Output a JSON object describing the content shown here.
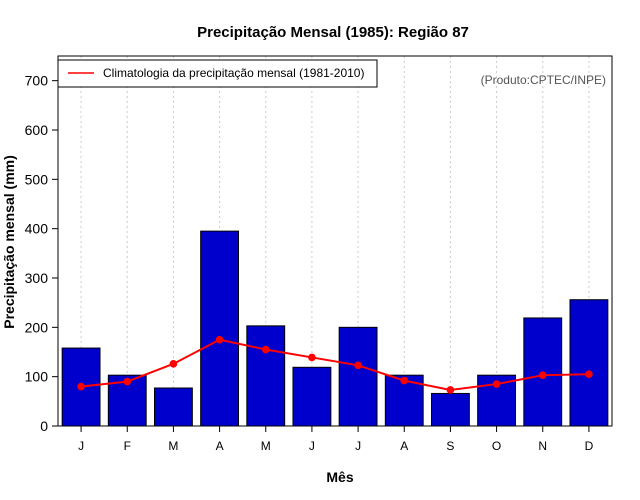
{
  "chart_data": {
    "type": "bar",
    "title": "Precipitação Mensal (1985): Região 87",
    "xlabel": "Mês",
    "ylabel": "Precipitação mensal (mm)",
    "ylim": [
      0,
      750
    ],
    "yticks": [
      0,
      100,
      200,
      300,
      400,
      500,
      600,
      700
    ],
    "categories": [
      "J",
      "F",
      "M",
      "A",
      "M",
      "J",
      "J",
      "A",
      "S",
      "O",
      "N",
      "D"
    ],
    "series": [
      {
        "name": "Precipitação mensal (1985)",
        "type": "bar",
        "color": "#0000CD",
        "values": [
          158,
          103,
          77,
          395,
          203,
          119,
          200,
          103,
          66,
          103,
          219,
          256
        ]
      },
      {
        "name": "Climatologia da precipitação mensal (1981-2010)",
        "type": "line",
        "color": "#FF0000",
        "values": [
          80,
          90,
          126,
          175,
          155,
          139,
          123,
          92,
          73,
          85,
          103,
          105
        ]
      }
    ],
    "legend": {
      "position": "top-left",
      "label": "Climatologia da precipitação mensal (1981-2010)"
    },
    "annotation": "(Produto:CPTEC/INPE)",
    "grid": "vertical-dotted"
  }
}
